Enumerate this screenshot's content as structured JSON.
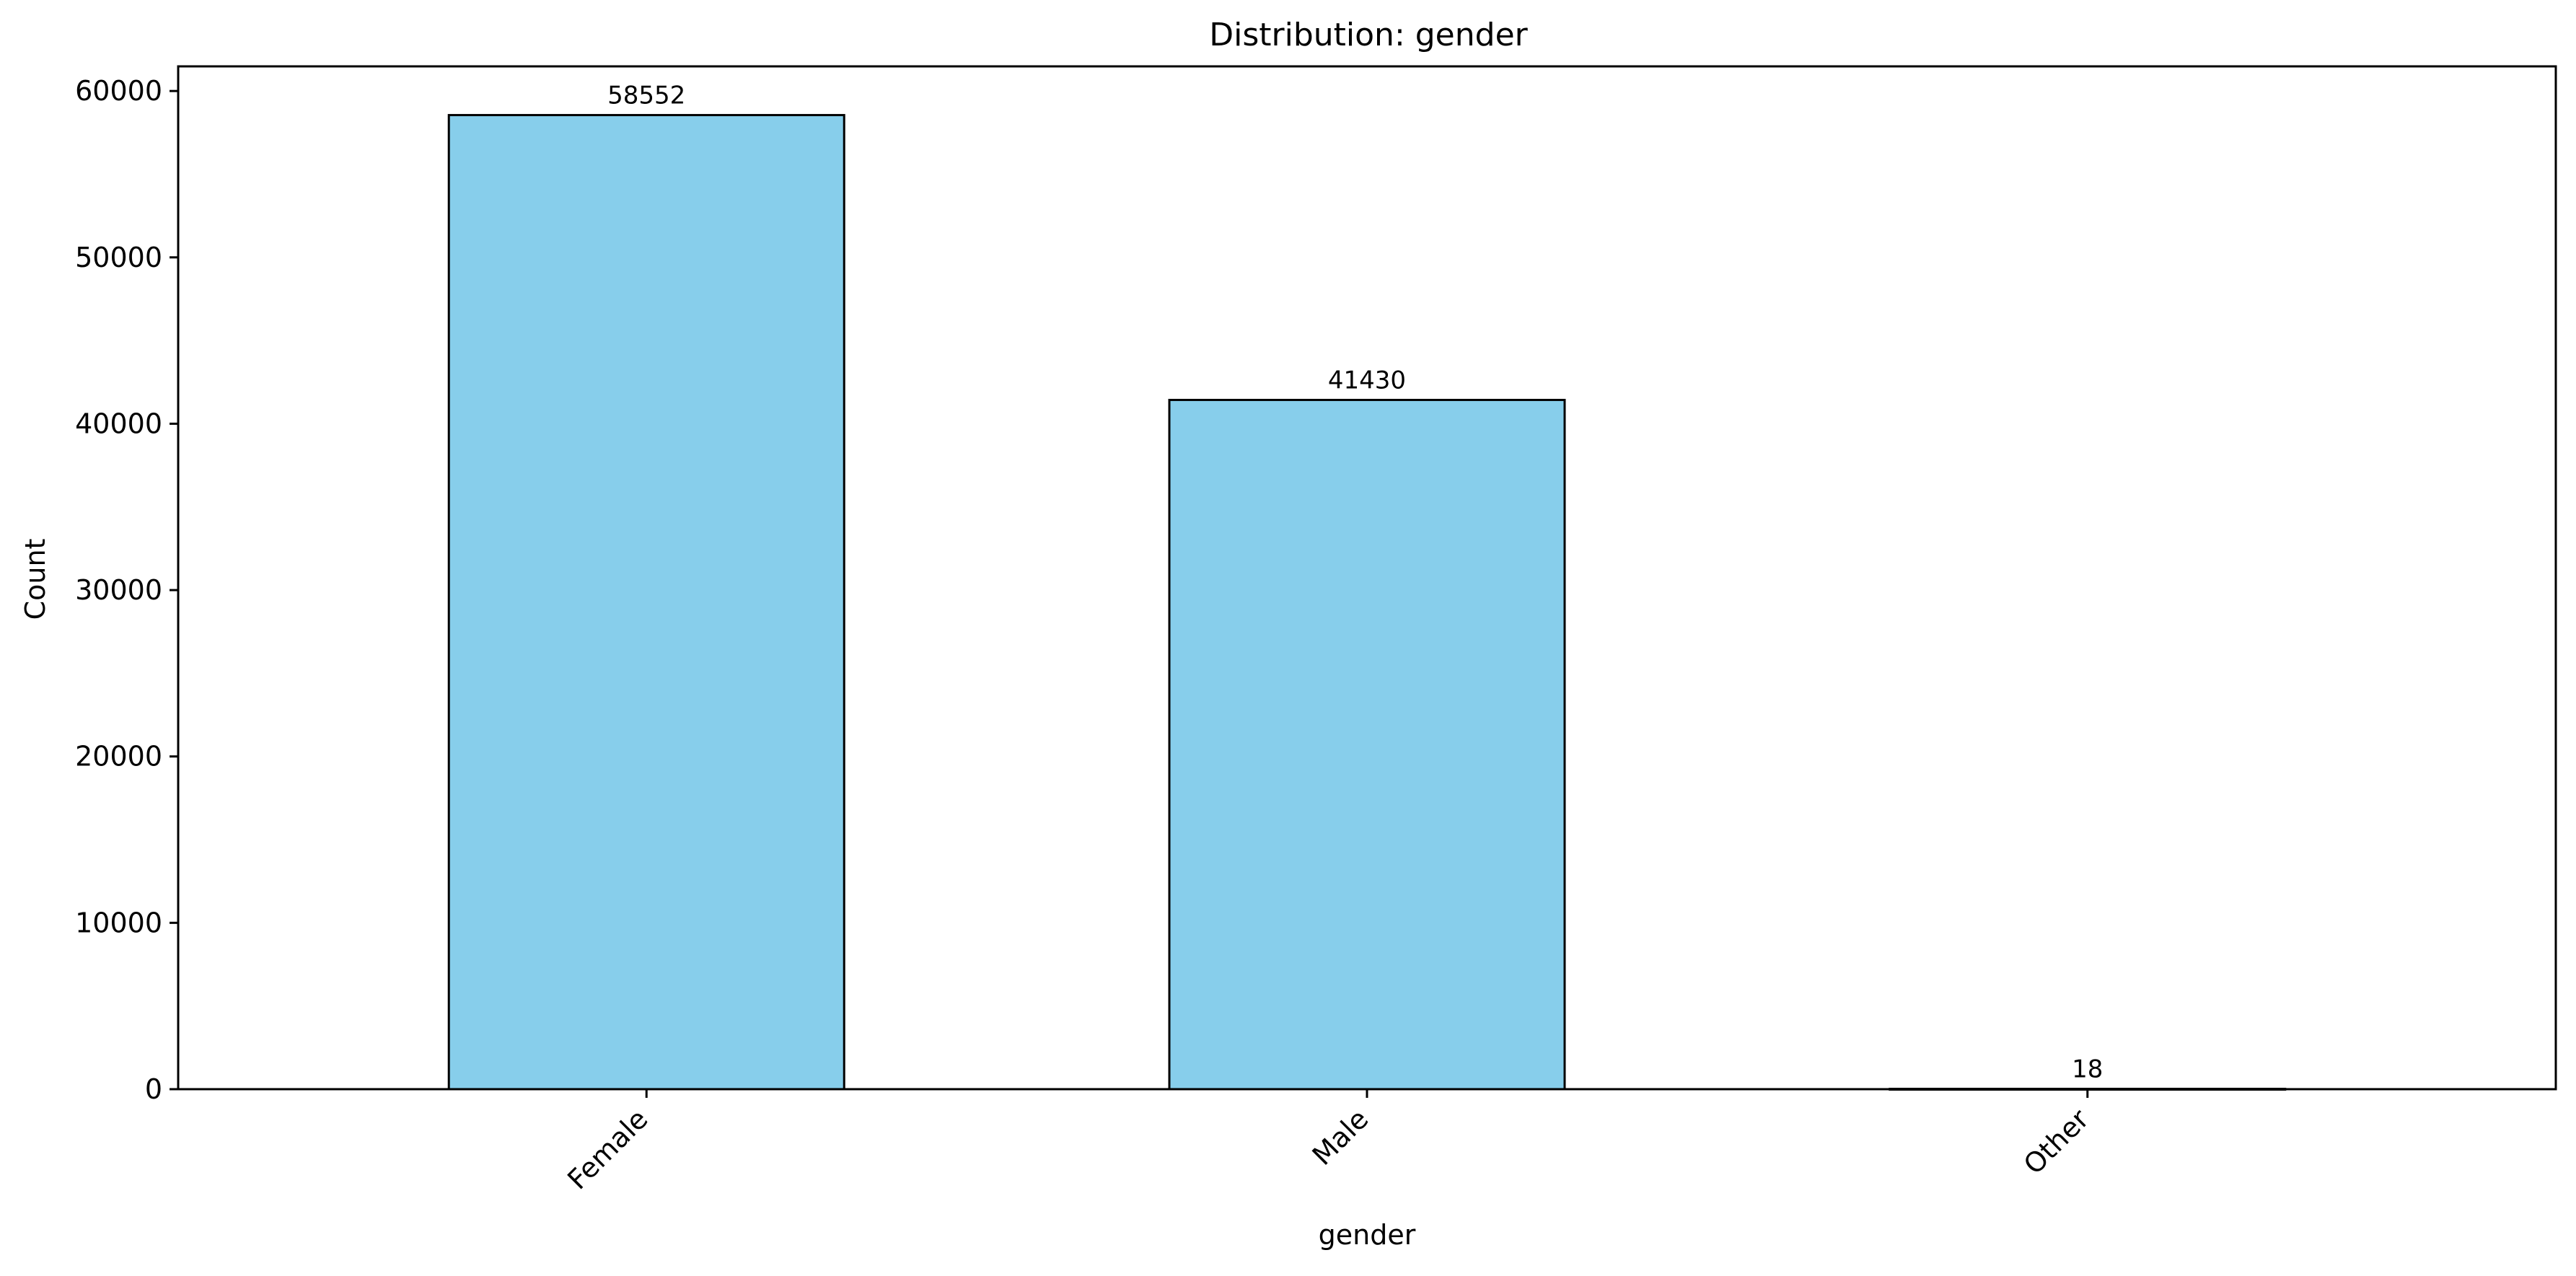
{
  "chart_data": {
    "type": "bar",
    "title": "Distribution: gender",
    "xlabel": "gender",
    "ylabel": "Count",
    "categories": [
      "Female",
      "Male",
      "Other"
    ],
    "values": [
      58552,
      41430,
      18
    ],
    "value_labels": [
      "58552",
      "41430",
      "18"
    ],
    "ylim": [
      0,
      61481
    ],
    "yticks": [
      0,
      10000,
      20000,
      30000,
      40000,
      50000,
      60000
    ],
    "ytick_labels": [
      "0",
      "10000",
      "20000",
      "30000",
      "40000",
      "50000",
      "60000"
    ],
    "grid": false,
    "legend": "none",
    "colors": {
      "bar_fill": "#87ceeb",
      "bar_edge": "#000000",
      "axis": "#000000",
      "background": "#ffffff"
    }
  }
}
